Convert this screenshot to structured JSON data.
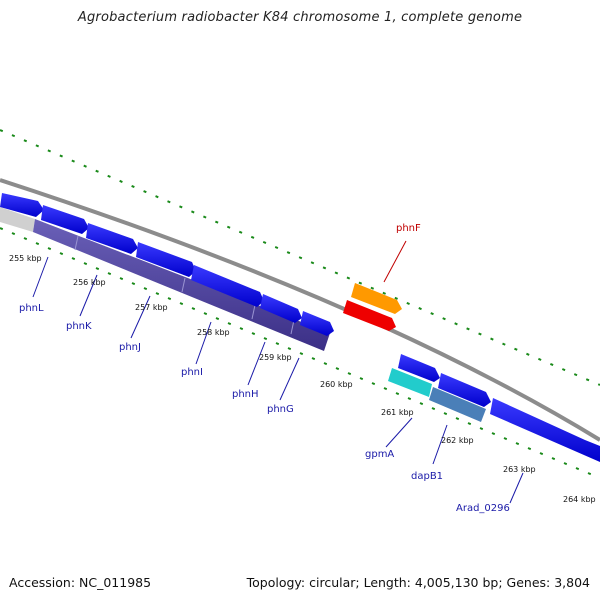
{
  "title": "Agrobacterium radiobacter K84 chromosome 1, complete genome",
  "accession": "Accession: NC_011985",
  "topology": "Topology: circular; Length: 4,005,130 bp; Genes: 3,804",
  "colors": {
    "backbone": "#8c8c8c",
    "cds_forward": "#0000ee",
    "cds_reverse_slate": "#4b3f9a",
    "gene_label": "#1a1aa8",
    "phnF_label": "#c00000",
    "orange_feature": "#ff9900",
    "red_feature": "#ee0000",
    "cyan_feature": "#22cccc",
    "steel_feature": "#4a7fb8",
    "ticks": "#1a8a1a"
  },
  "kbp_ticks": [
    "255 kbp",
    "256 kbp",
    "257 kbp",
    "258 kbp",
    "259 kbp",
    "260 kbp",
    "261 kbp",
    "262 kbp",
    "263 kbp",
    "264 kbp"
  ],
  "gene_labels": [
    "phnL",
    "phnK",
    "phnJ",
    "phnI",
    "phnH",
    "phnG",
    "phnF",
    "gpmA",
    "dapB1",
    "Arad_0296"
  ]
}
